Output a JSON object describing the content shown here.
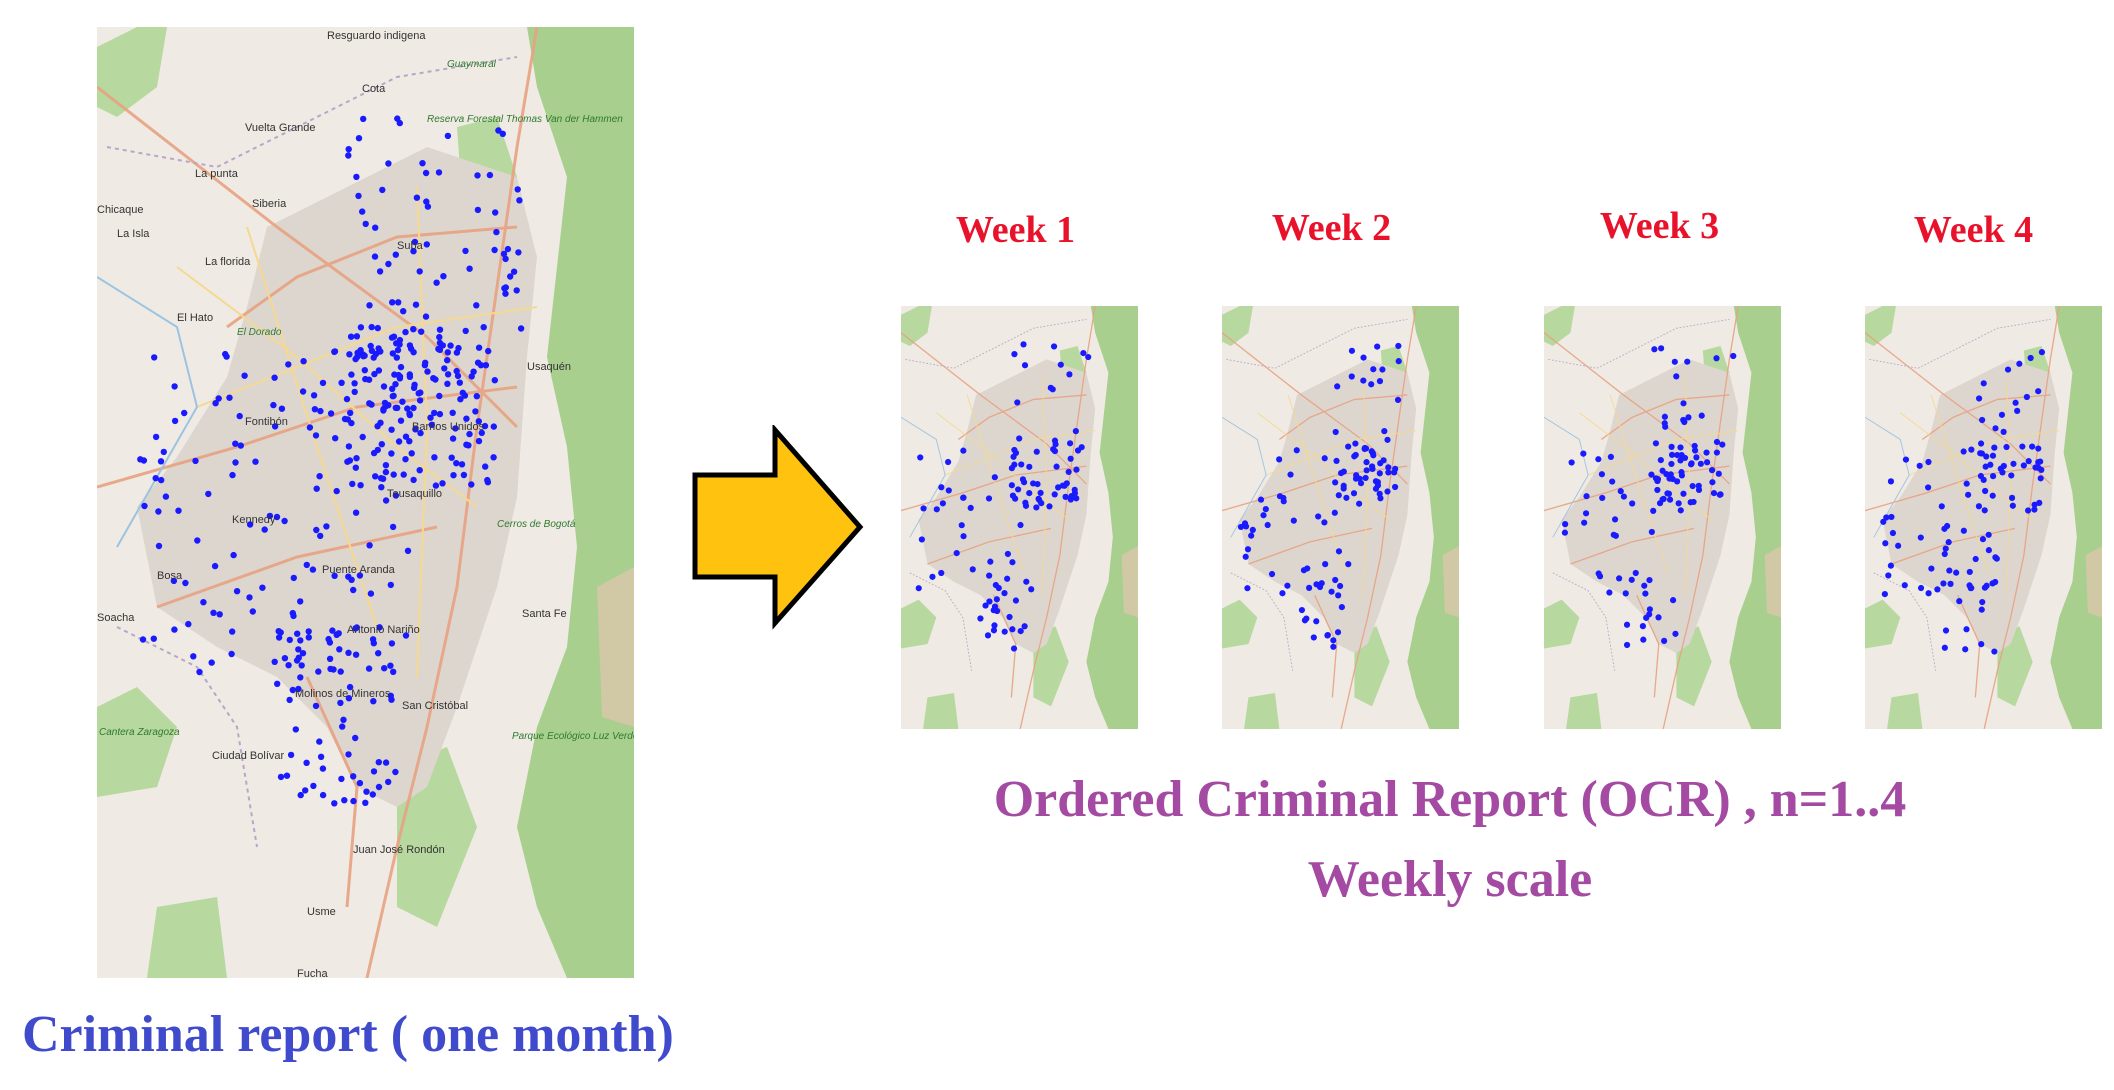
{
  "main_map": {
    "caption": "Criminal report ( one month)",
    "place_labels": [
      "Resguardo indigena",
      "Guaymaral",
      "Cota",
      "Vuelta Grande",
      "Reserva Forestal Thomas Van der Hammen",
      "La punta",
      "Siberia",
      "Chicaque",
      "La Isla",
      "La florida",
      "Suba",
      "El Hato",
      "El Dorado",
      "Usaquén",
      "Fontibón",
      "Barrios Unidos",
      "Teusaquillo",
      "Kennedy",
      "Cerros de Bogotá",
      "Puente Aranda",
      "Bosa",
      "Antonio Nariño",
      "Santa Fe",
      "Molinos de Mineros",
      "San Cristóbal",
      "Cantera Zaragoza",
      "Ciudad Bolívar",
      "Parque Ecológico Luz Verde",
      "Juan José Rondón",
      "Usme",
      "Soacha",
      "Fucha"
    ]
  },
  "weeks": [
    {
      "title": "Week 1"
    },
    {
      "title": "Week 2"
    },
    {
      "title": "Week 3"
    },
    {
      "title": "Week 4"
    }
  ],
  "ocr_caption": {
    "line1": "Ordered Criminal Report (OCR) , n=1..4",
    "line2": "Weekly scale"
  },
  "colors": {
    "week_title": "#e8132b",
    "main_caption": "#3f4bcc",
    "ocr_caption": "#a44aa2",
    "points": "#1a1aff",
    "arrow_fill": "#ffc20e",
    "map_background": "#efeae3",
    "green_area": "#a8cf8e"
  },
  "icons": [
    "right-arrow-icon"
  ]
}
